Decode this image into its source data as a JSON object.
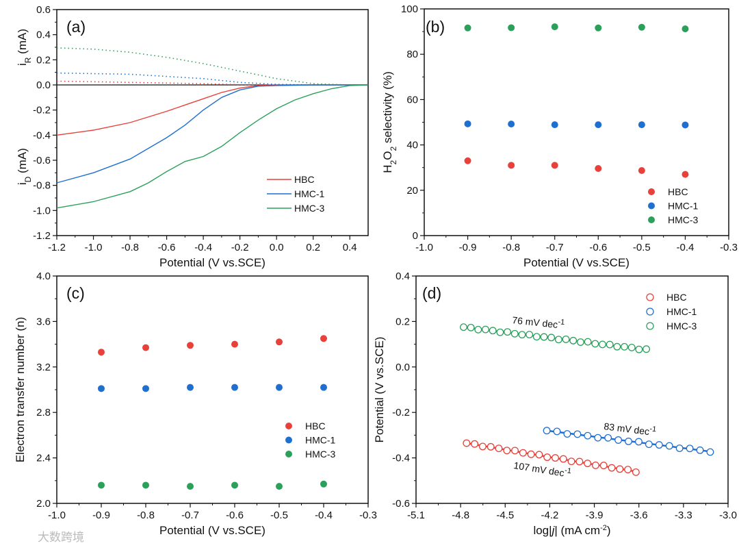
{
  "colors": {
    "HBC": "#e8403a",
    "HMC-1": "#1f6fd1",
    "HMC-3": "#2aa05a"
  },
  "watermark": "大数跨境",
  "chart_data": [
    {
      "panel": "(a)",
      "type": "line",
      "xlabel": "Potential (V vs.SCE)",
      "ylabel_top": [
        {
          "t": "i"
        },
        {
          "t": "R",
          "s": "sub"
        },
        {
          "t": " (mA)"
        }
      ],
      "ylabel_bottom": [
        {
          "t": "i"
        },
        {
          "t": "D",
          "s": "sub"
        },
        {
          "t": " (mA)"
        }
      ],
      "xlim": [
        -1.2,
        0.5
      ],
      "ylim": [
        -1.2,
        0.6
      ],
      "xticks": [
        -1.2,
        -1.0,
        -0.8,
        -0.6,
        -0.4,
        -0.2,
        0.0,
        0.2,
        0.4
      ],
      "yticks": [
        -1.2,
        -1.0,
        -0.8,
        -0.6,
        -0.4,
        -0.2,
        0.0,
        0.2,
        0.4,
        0.6
      ],
      "legend": "bottom-right",
      "series": [
        {
          "name": "HBC",
          "kind": "iD",
          "points": [
            [
              -1.2,
              -0.4
            ],
            [
              -1.0,
              -0.36
            ],
            [
              -0.8,
              -0.3
            ],
            [
              -0.6,
              -0.21
            ],
            [
              -0.5,
              -0.16
            ],
            [
              -0.4,
              -0.11
            ],
            [
              -0.3,
              -0.06
            ],
            [
              -0.2,
              -0.025
            ],
            [
              -0.1,
              -0.005
            ],
            [
              0,
              0
            ],
            [
              0.5,
              0
            ]
          ]
        },
        {
          "name": "HMC-1",
          "kind": "iD",
          "points": [
            [
              -1.2,
              -0.78
            ],
            [
              -1.0,
              -0.7
            ],
            [
              -0.8,
              -0.59
            ],
            [
              -0.6,
              -0.42
            ],
            [
              -0.5,
              -0.32
            ],
            [
              -0.4,
              -0.2
            ],
            [
              -0.3,
              -0.1
            ],
            [
              -0.2,
              -0.04
            ],
            [
              -0.1,
              -0.01
            ],
            [
              0,
              -0.005
            ],
            [
              0.2,
              0
            ],
            [
              0.5,
              0
            ]
          ]
        },
        {
          "name": "HMC-3",
          "kind": "iD",
          "points": [
            [
              -1.2,
              -0.98
            ],
            [
              -1.0,
              -0.93
            ],
            [
              -0.8,
              -0.85
            ],
            [
              -0.7,
              -0.78
            ],
            [
              -0.6,
              -0.69
            ],
            [
              -0.5,
              -0.61
            ],
            [
              -0.4,
              -0.57
            ],
            [
              -0.3,
              -0.49
            ],
            [
              -0.2,
              -0.38
            ],
            [
              -0.1,
              -0.28
            ],
            [
              0,
              -0.19
            ],
            [
              0.1,
              -0.12
            ],
            [
              0.2,
              -0.07
            ],
            [
              0.3,
              -0.03
            ],
            [
              0.4,
              -0.005
            ],
            [
              0.5,
              0
            ]
          ]
        },
        {
          "name": "HBC",
          "kind": "iR",
          "points": [
            [
              -1.2,
              0.03
            ],
            [
              -0.8,
              0.02
            ],
            [
              -0.4,
              0.01
            ],
            [
              -0.2,
              0.002
            ],
            [
              0,
              0
            ]
          ]
        },
        {
          "name": "HMC-1",
          "kind": "iR",
          "points": [
            [
              -1.2,
              0.095
            ],
            [
              -0.8,
              0.085
            ],
            [
              -0.4,
              0.05
            ],
            [
              -0.2,
              0.02
            ],
            [
              0,
              0.005
            ],
            [
              0.2,
              0
            ]
          ]
        },
        {
          "name": "HMC-3",
          "kind": "iR",
          "points": [
            [
              -1.2,
              0.295
            ],
            [
              -1.0,
              0.285
            ],
            [
              -0.8,
              0.26
            ],
            [
              -0.6,
              0.22
            ],
            [
              -0.4,
              0.17
            ],
            [
              -0.2,
              0.11
            ],
            [
              0,
              0.05
            ],
            [
              0.2,
              0.01
            ],
            [
              0.4,
              0
            ],
            [
              0.5,
              0
            ]
          ]
        }
      ]
    },
    {
      "panel": "(b)",
      "type": "scatter",
      "xlabel": "Potential (V vs.SCE)",
      "ylabel": [
        {
          "t": "H"
        },
        {
          "t": "2",
          "s": "sub"
        },
        {
          "t": "O"
        },
        {
          "t": "2",
          "s": "sub"
        },
        {
          "t": " selectivity (%)"
        }
      ],
      "xlim": [
        -1.0,
        -0.3
      ],
      "ylim": [
        0,
        100
      ],
      "xticks": [
        -1.0,
        -0.9,
        -0.8,
        -0.7,
        -0.6,
        -0.5,
        -0.4,
        -0.3
      ],
      "yticks": [
        0,
        20,
        40,
        60,
        80,
        100
      ],
      "legend": "bottom-right",
      "x": [
        -0.9,
        -0.8,
        -0.7,
        -0.6,
        -0.5,
        -0.4
      ],
      "series": [
        {
          "name": "HBC",
          "values": [
            33.0,
            31.0,
            31.0,
            29.6,
            28.7,
            27.0
          ]
        },
        {
          "name": "HMC-1",
          "values": [
            49.3,
            49.2,
            48.9,
            48.9,
            48.9,
            48.8
          ]
        },
        {
          "name": "HMC-3",
          "values": [
            91.6,
            91.7,
            92.1,
            91.6,
            91.9,
            91.2
          ]
        }
      ]
    },
    {
      "panel": "(c)",
      "type": "scatter",
      "xlabel": "Potential (V vs.SCE)",
      "ylabel": [
        {
          "t": "Electron transfer number (n)"
        }
      ],
      "xlim": [
        -1.0,
        -0.3
      ],
      "ylim": [
        2.0,
        4.0
      ],
      "xticks": [
        -1.0,
        -0.9,
        -0.8,
        -0.7,
        -0.6,
        -0.5,
        -0.4,
        -0.3
      ],
      "yticks": [
        2.0,
        2.4,
        2.8,
        3.2,
        3.6,
        4.0
      ],
      "legend": "center-right",
      "x": [
        -0.9,
        -0.8,
        -0.7,
        -0.6,
        -0.5,
        -0.4
      ],
      "series": [
        {
          "name": "HBC",
          "values": [
            3.33,
            3.37,
            3.39,
            3.4,
            3.42,
            3.45
          ]
        },
        {
          "name": "HMC-1",
          "values": [
            3.01,
            3.01,
            3.02,
            3.02,
            3.02,
            3.02
          ]
        },
        {
          "name": "HMC-3",
          "values": [
            2.16,
            2.16,
            2.15,
            2.16,
            2.15,
            2.17
          ]
        }
      ]
    },
    {
      "panel": "(d)",
      "type": "scatter",
      "xlabel": [
        {
          "t": "log|"
        },
        {
          "t": "j",
          "s": "it"
        },
        {
          "t": "| (mA cm"
        },
        {
          "t": "-2",
          "s": "sup"
        },
        {
          "t": ")"
        }
      ],
      "ylabel": [
        {
          "t": "Potential (V vs.SCE)"
        }
      ],
      "xlim": [
        -5.1,
        -3.0
      ],
      "ylim": [
        -0.6,
        0.4
      ],
      "xticks": [
        -5.1,
        -4.8,
        -4.5,
        -4.2,
        -3.9,
        -3.6,
        -3.3,
        -3.0
      ],
      "yticks": [
        -0.6,
        -0.4,
        -0.2,
        0.0,
        0.2,
        0.4
      ],
      "legend": "top-right",
      "series": [
        {
          "name": "HBC",
          "x_range": [
            -4.76,
            -3.62
          ],
          "y_range": [
            -0.335,
            -0.46
          ],
          "n": 22,
          "annotation": "107 mV dec",
          "annotation_sup": "-1"
        },
        {
          "name": "HMC-1",
          "x_range": [
            -4.22,
            -3.12
          ],
          "y_range": [
            -0.28,
            -0.372
          ],
          "n": 17,
          "annotation": "83 mV dec",
          "annotation_sup": "-1"
        },
        {
          "name": "HMC-3",
          "x_range": [
            -4.78,
            -3.55
          ],
          "y_range": [
            0.175,
            0.076
          ],
          "n": 26,
          "annotation": "76 mV dec",
          "annotation_sup": "-1"
        }
      ]
    }
  ]
}
